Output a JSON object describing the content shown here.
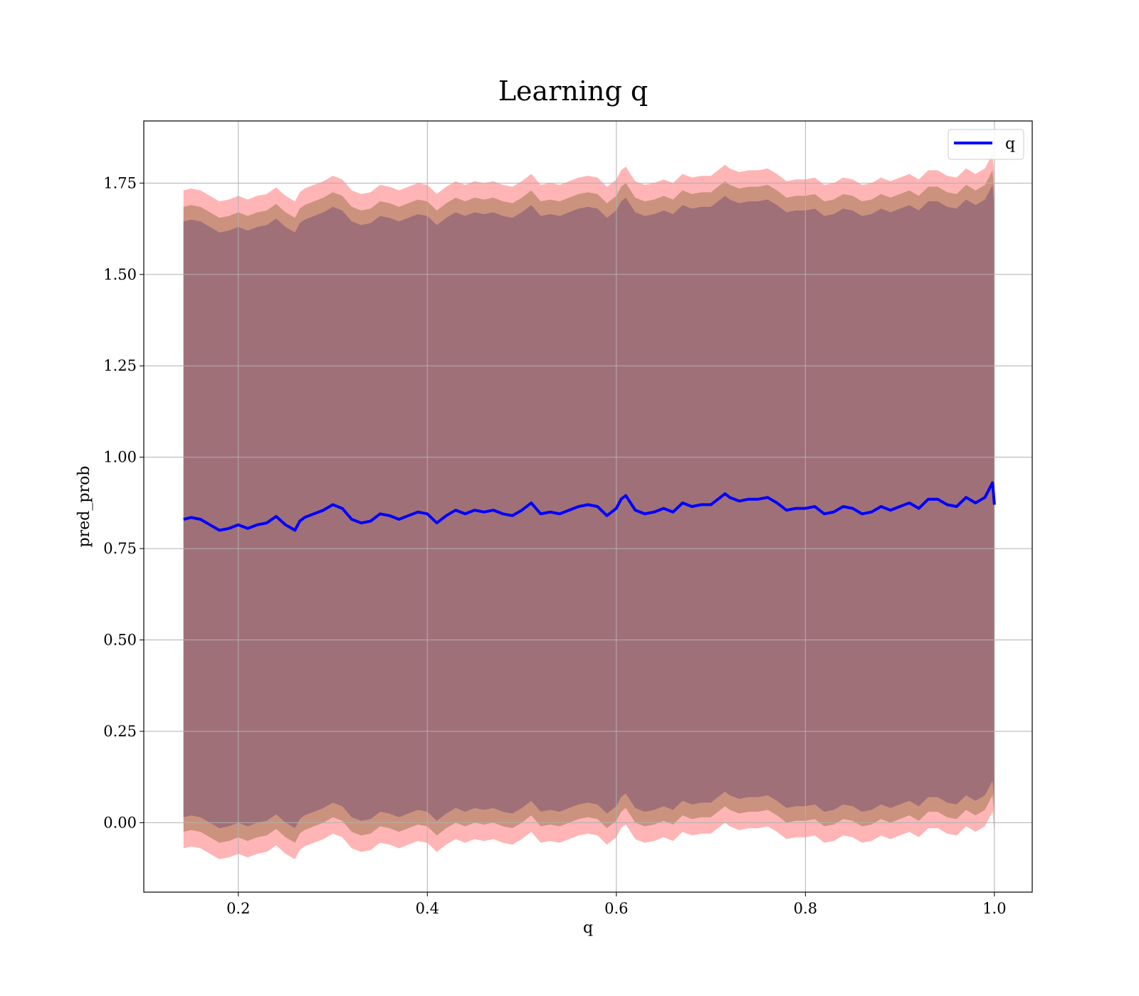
{
  "chart_data": {
    "type": "line",
    "title": "Learning q",
    "xlabel": "q",
    "ylabel": "pred_prob",
    "xlim": [
      0.1,
      1.04
    ],
    "ylim": [
      -0.19,
      1.92
    ],
    "xticks": [
      0.2,
      0.4,
      0.6,
      0.8,
      1.0
    ],
    "xtick_labels": [
      "0.2",
      "0.4",
      "0.6",
      "0.8",
      "1.0"
    ],
    "yticks": [
      0.0,
      0.25,
      0.5,
      0.75,
      1.0,
      1.25,
      1.5,
      1.75
    ],
    "ytick_labels": [
      "0.00",
      "0.25",
      "0.50",
      "0.75",
      "1.00",
      "1.25",
      "1.50",
      "1.75"
    ],
    "grid": true,
    "legend": {
      "position": "top-right",
      "entries": [
        "q"
      ]
    },
    "colors": {
      "line": "#0000ff",
      "band_outer": "#ff9c9c",
      "band_mid": "#c58e78",
      "band_inner": "#a07078"
    },
    "band_half_widths": {
      "outer": 0.9,
      "mid": 0.855,
      "inner": 0.815
    },
    "series": [
      {
        "name": "q",
        "x": [
          0.142,
          0.15,
          0.16,
          0.17,
          0.18,
          0.19,
          0.2,
          0.21,
          0.22,
          0.23,
          0.24,
          0.25,
          0.26,
          0.265,
          0.27,
          0.28,
          0.29,
          0.3,
          0.31,
          0.32,
          0.33,
          0.34,
          0.35,
          0.36,
          0.37,
          0.38,
          0.39,
          0.4,
          0.41,
          0.42,
          0.43,
          0.44,
          0.45,
          0.46,
          0.47,
          0.48,
          0.49,
          0.5,
          0.51,
          0.52,
          0.53,
          0.54,
          0.55,
          0.56,
          0.57,
          0.58,
          0.59,
          0.6,
          0.605,
          0.61,
          0.62,
          0.63,
          0.64,
          0.65,
          0.66,
          0.67,
          0.68,
          0.69,
          0.7,
          0.71,
          0.715,
          0.72,
          0.73,
          0.74,
          0.75,
          0.76,
          0.77,
          0.78,
          0.79,
          0.8,
          0.81,
          0.82,
          0.83,
          0.84,
          0.85,
          0.86,
          0.87,
          0.88,
          0.89,
          0.9,
          0.91,
          0.92,
          0.93,
          0.94,
          0.95,
          0.96,
          0.97,
          0.98,
          0.99,
          0.998,
          1.0
        ],
        "y": [
          0.83,
          0.835,
          0.83,
          0.815,
          0.8,
          0.805,
          0.815,
          0.805,
          0.815,
          0.82,
          0.838,
          0.815,
          0.8,
          0.825,
          0.835,
          0.845,
          0.855,
          0.87,
          0.86,
          0.83,
          0.82,
          0.825,
          0.845,
          0.84,
          0.83,
          0.84,
          0.85,
          0.845,
          0.82,
          0.84,
          0.855,
          0.845,
          0.855,
          0.85,
          0.855,
          0.845,
          0.84,
          0.855,
          0.875,
          0.845,
          0.85,
          0.845,
          0.855,
          0.865,
          0.87,
          0.865,
          0.84,
          0.86,
          0.885,
          0.895,
          0.855,
          0.845,
          0.85,
          0.86,
          0.85,
          0.875,
          0.865,
          0.87,
          0.87,
          0.89,
          0.9,
          0.89,
          0.88,
          0.885,
          0.885,
          0.89,
          0.875,
          0.855,
          0.86,
          0.86,
          0.865,
          0.845,
          0.85,
          0.865,
          0.86,
          0.845,
          0.85,
          0.865,
          0.855,
          0.865,
          0.875,
          0.86,
          0.885,
          0.885,
          0.87,
          0.865,
          0.89,
          0.875,
          0.89,
          0.93,
          0.87
        ]
      }
    ]
  }
}
